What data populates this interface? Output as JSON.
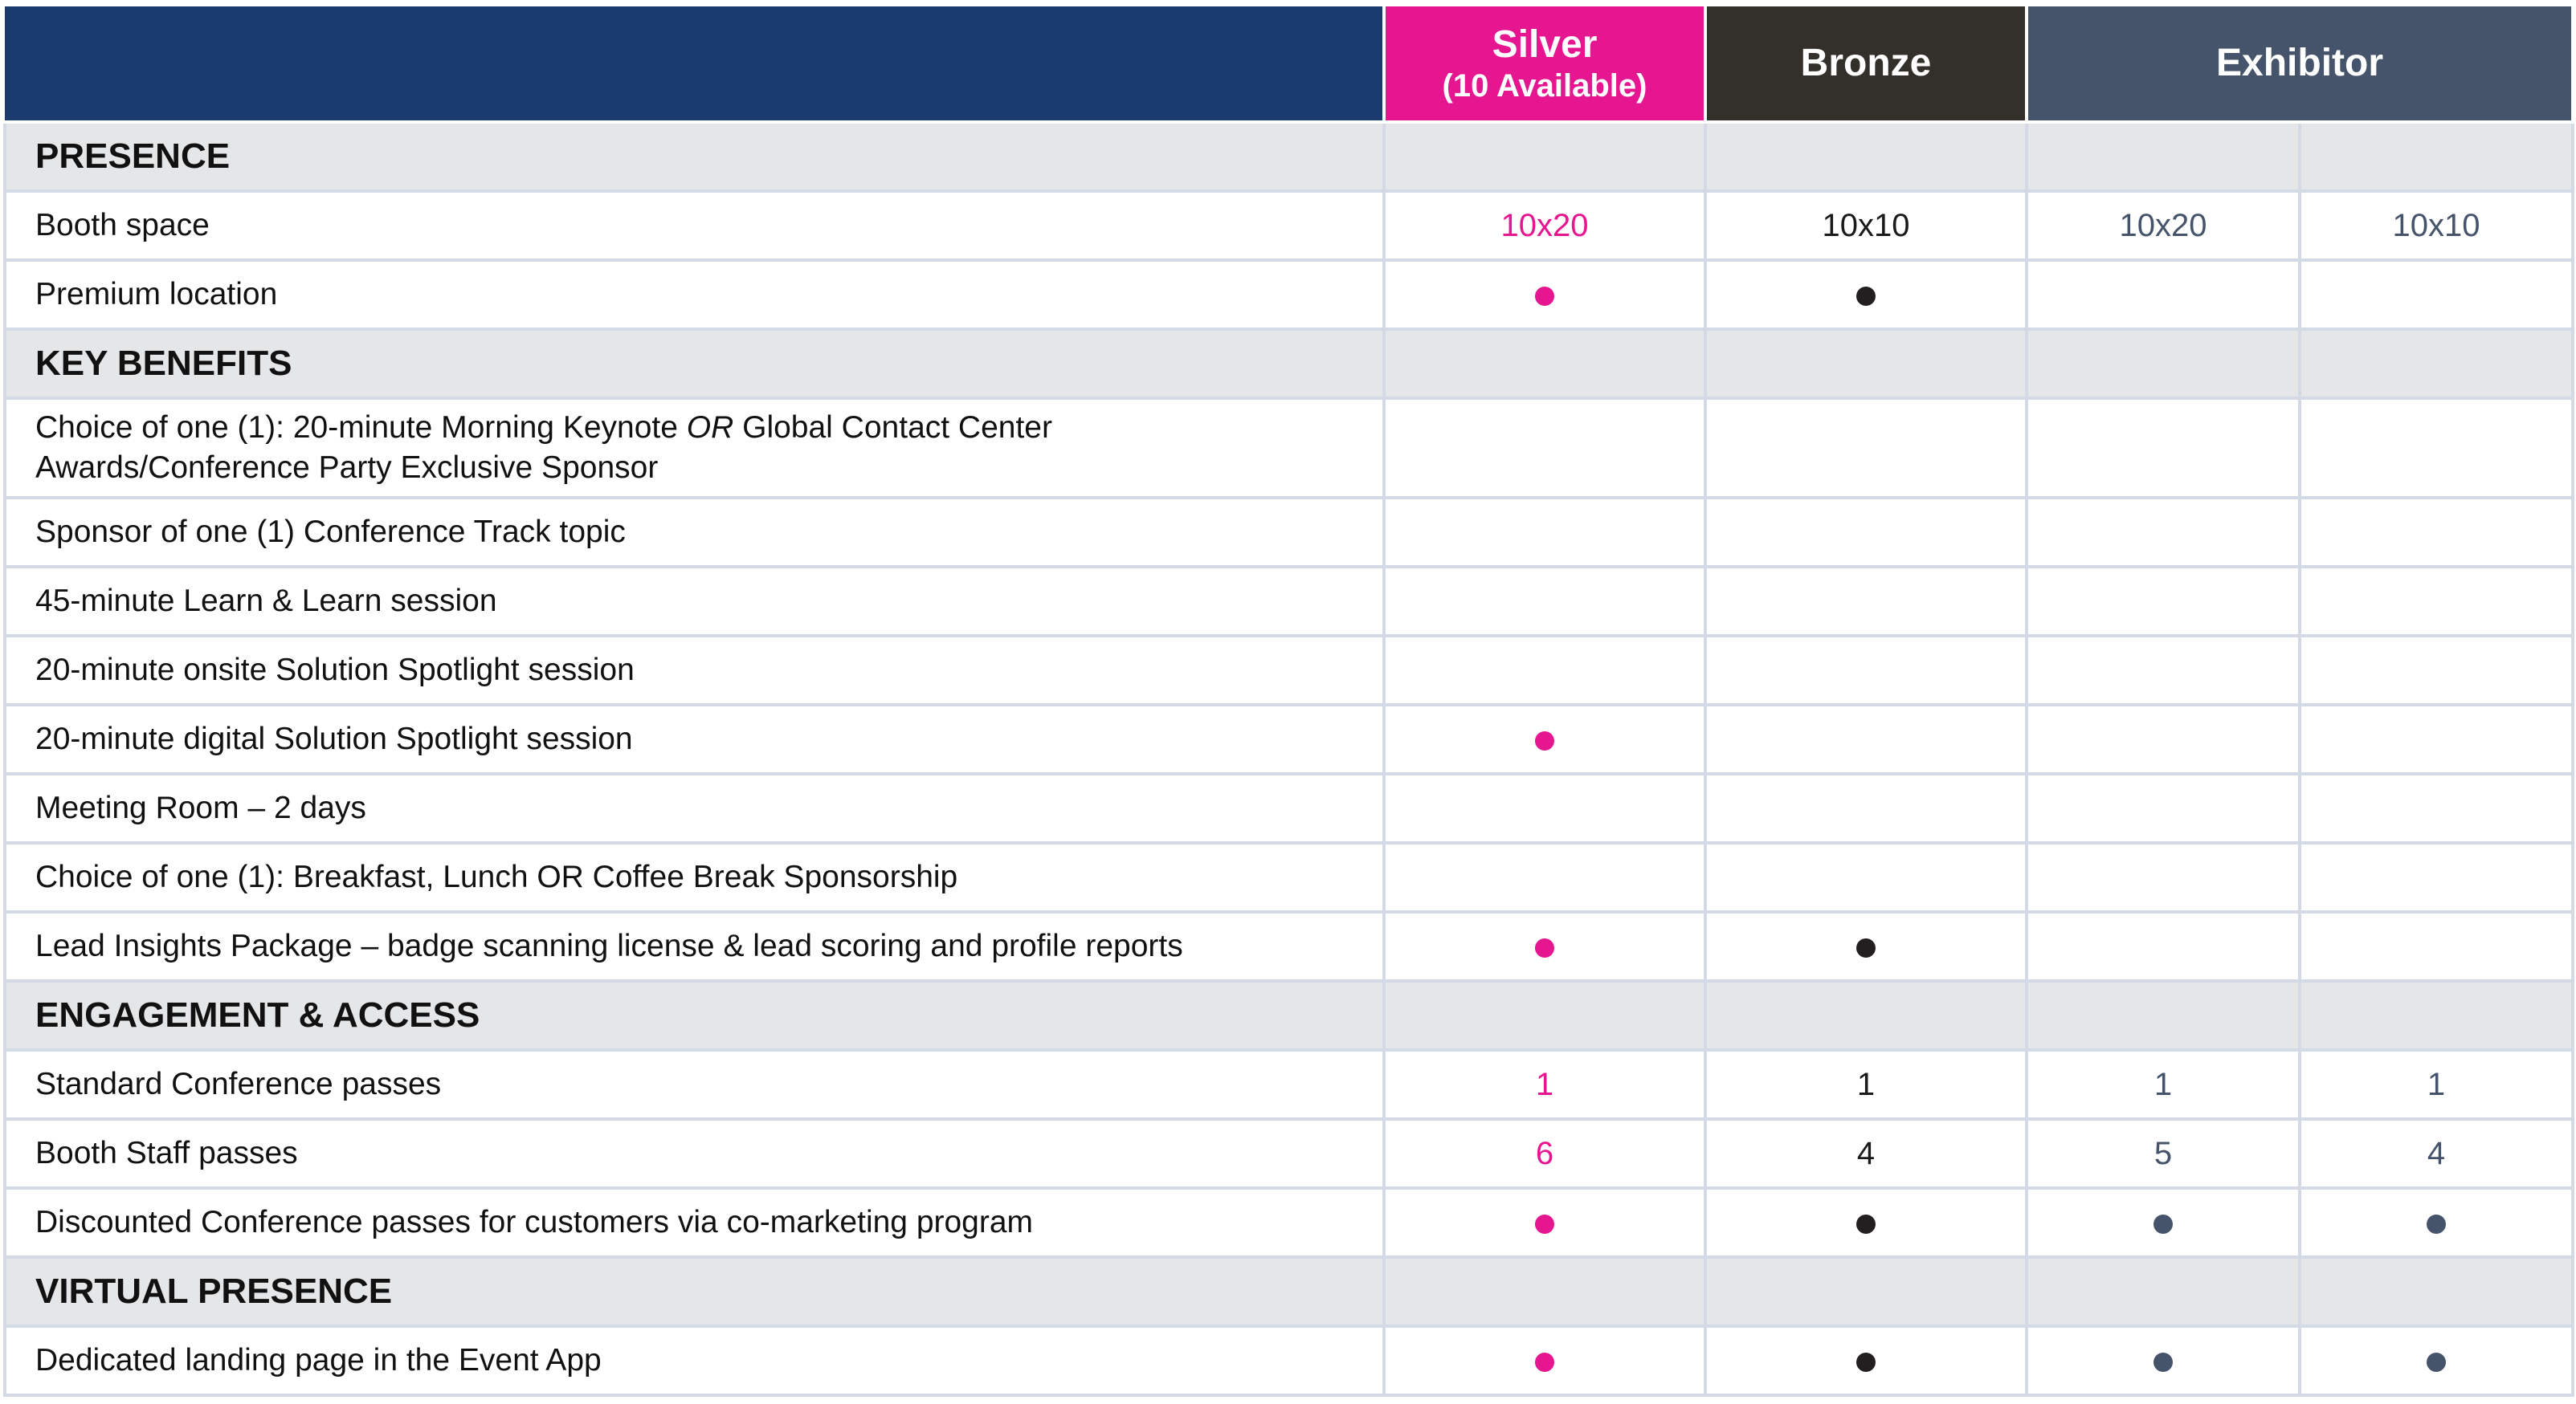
{
  "header": {
    "silver": {
      "name": "Silver",
      "sub": "(10 Available)"
    },
    "bronze": {
      "name": "Bronze"
    },
    "exhibitor": {
      "name": "Exhibitor"
    }
  },
  "colors": {
    "header_bg": "#1a3b70",
    "silver": "#e5168f",
    "bronze": "#33302c",
    "exhibitor": "#46546b",
    "section_bg": "#e5e6e8",
    "grid": "#d3dae5"
  },
  "sections": {
    "presence": "PRESENCE",
    "key_benefits": "KEY BENEFITS",
    "engagement": "ENGAGEMENT & ACCESS",
    "virtual": "VIRTUAL PRESENCE"
  },
  "rows": {
    "booth_space": {
      "label": "Booth space",
      "silver": "10x20",
      "bronze": "10x10",
      "exhibitor_a": "10x20",
      "exhibitor_b": "10x10"
    },
    "premium_location": {
      "label": "Premium location"
    },
    "keynote": {
      "label_part1": "Choice of one (1): 20-minute Morning Keynote ",
      "label_or": "OR",
      "label_part2": " Global Contact Center",
      "label_line2": "Awards/Conference Party Exclusive Sponsor"
    },
    "track_topic": {
      "label": "Sponsor of one (1) Conference Track topic"
    },
    "learn_session": {
      "label": "45-minute Learn & Learn session"
    },
    "onsite_spotlight": {
      "label": "20-minute onsite Solution Spotlight session"
    },
    "digital_spotlight": {
      "label": "20-minute digital Solution Spotlight session"
    },
    "meeting_room": {
      "label": "Meeting Room – 2 days"
    },
    "food_sponsorship": {
      "label": "Choice of one (1): Breakfast, Lunch OR Coffee Break Sponsorship"
    },
    "lead_insights": {
      "label": "Lead Insights Package – badge scanning license & lead scoring and profile reports"
    },
    "standard_passes": {
      "label": "Standard Conference passes",
      "silver": "1",
      "bronze": "1",
      "exhibitor_a": "1",
      "exhibitor_b": "1"
    },
    "staff_passes": {
      "label": "Booth Staff passes",
      "silver": "6",
      "bronze": "4",
      "exhibitor_a": "5",
      "exhibitor_b": "4"
    },
    "discounted_passes": {
      "label": "Discounted Conference passes for customers via co-marketing program"
    },
    "landing_page": {
      "label": "Dedicated landing page in the Event App"
    }
  },
  "included_marks": {
    "premium_location": {
      "silver": true,
      "bronze": true,
      "exhibitor_a": false,
      "exhibitor_b": false
    },
    "digital_spotlight": {
      "silver": true,
      "bronze": false,
      "exhibitor_a": false,
      "exhibitor_b": false
    },
    "lead_insights": {
      "silver": true,
      "bronze": true,
      "exhibitor_a": false,
      "exhibitor_b": false
    },
    "discounted_passes": {
      "silver": true,
      "bronze": true,
      "exhibitor_a": true,
      "exhibitor_b": true
    },
    "landing_page": {
      "silver": true,
      "bronze": true,
      "exhibitor_a": true,
      "exhibitor_b": true
    }
  }
}
